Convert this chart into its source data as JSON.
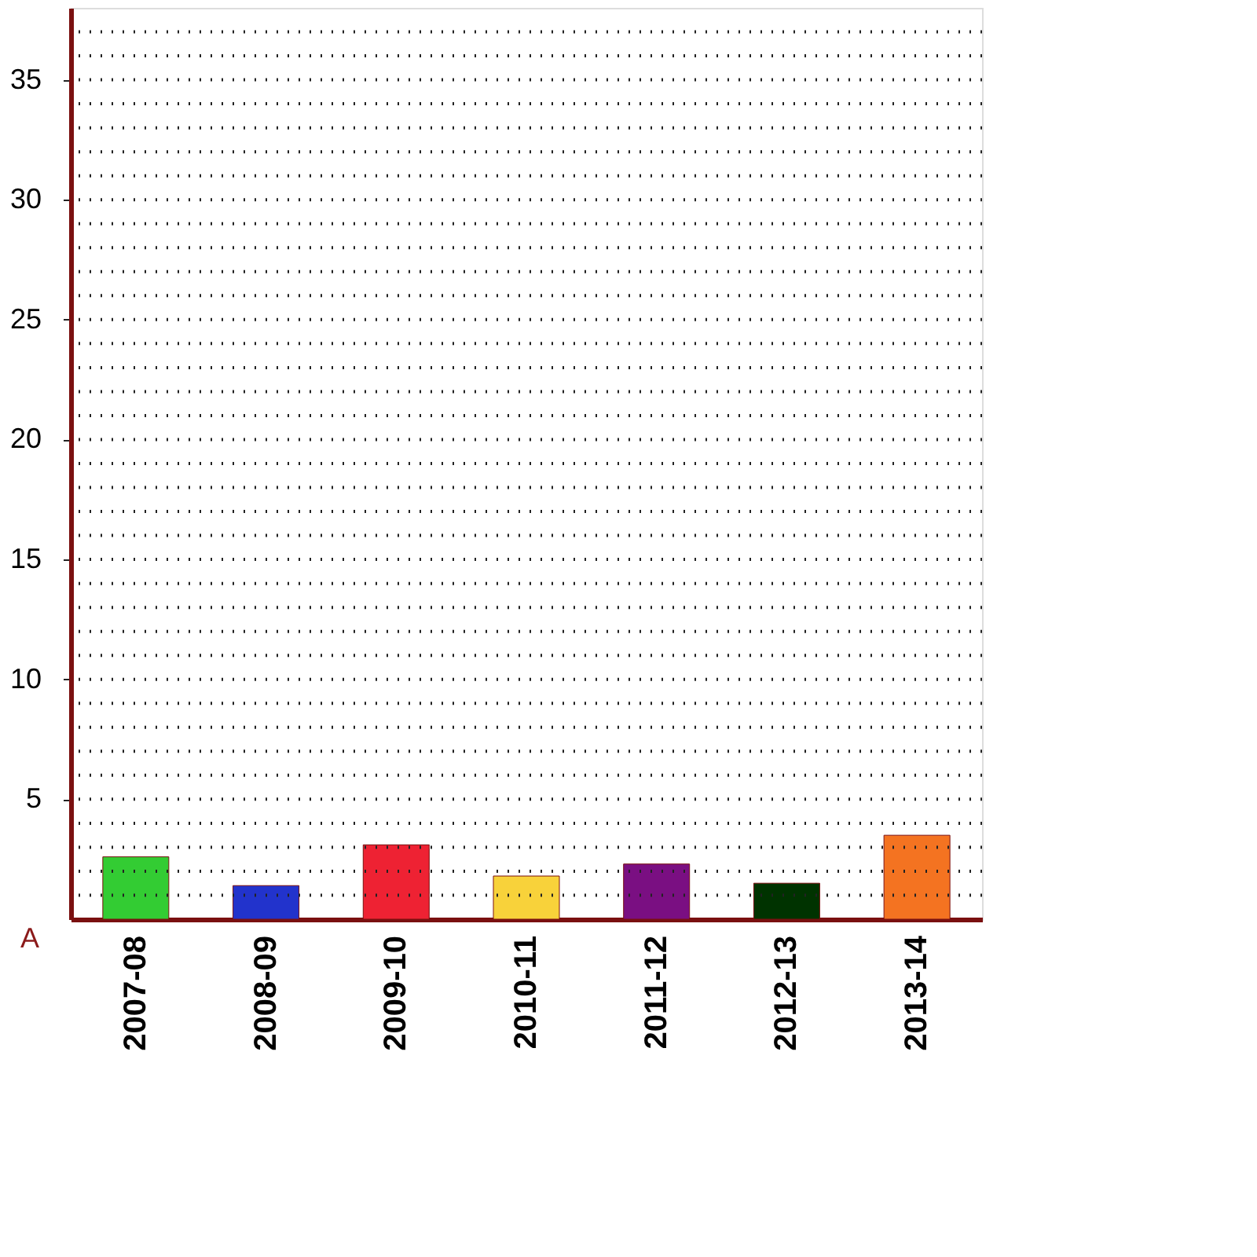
{
  "chart_data": {
    "type": "bar",
    "categories": [
      "2007-08",
      "2008-09",
      "2009-10",
      "2010-11",
      "2011-12",
      "2012-13",
      "2013-14"
    ],
    "values": [
      2.6,
      1.4,
      3.1,
      1.8,
      2.3,
      1.5,
      3.5
    ],
    "colors": [
      "#33cc33",
      "#2233cc",
      "#ee2233",
      "#f8d23a",
      "#7a0f82",
      "#003300",
      "#f47321"
    ],
    "ylim": [
      0,
      38
    ],
    "yticks": [
      {
        "value": 1,
        "label": null
      },
      {
        "value": 2,
        "label": null
      },
      {
        "value": 3,
        "label": null
      },
      {
        "value": 4,
        "label": null
      },
      5,
      {
        "value": 6,
        "label": null
      },
      {
        "value": 7,
        "label": null
      },
      {
        "value": 8,
        "label": null
      },
      {
        "value": 9,
        "label": null
      },
      10,
      {
        "value": 11,
        "label": null
      },
      {
        "value": 12,
        "label": null
      },
      {
        "value": 13,
        "label": null
      },
      {
        "value": 14,
        "label": null
      },
      15,
      {
        "value": 16,
        "label": null
      },
      {
        "value": 17,
        "label": null
      },
      {
        "value": 18,
        "label": null
      },
      {
        "value": 19,
        "label": null
      },
      20,
      {
        "value": 21,
        "label": null
      },
      {
        "value": 22,
        "label": null
      },
      {
        "value": 23,
        "label": null
      },
      {
        "value": 24,
        "label": null
      },
      25,
      {
        "value": 26,
        "label": null
      },
      {
        "value": 27,
        "label": null
      },
      {
        "value": 28,
        "label": null
      },
      {
        "value": 29,
        "label": null
      },
      30,
      {
        "value": 31,
        "label": null
      },
      {
        "value": 32,
        "label": null
      },
      {
        "value": 33,
        "label": null
      },
      {
        "value": 34,
        "label": null
      },
      35,
      {
        "value": 36,
        "label": null
      },
      {
        "value": 37,
        "label": null
      }
    ],
    "grid": "y",
    "annotations": [
      "A"
    ]
  }
}
